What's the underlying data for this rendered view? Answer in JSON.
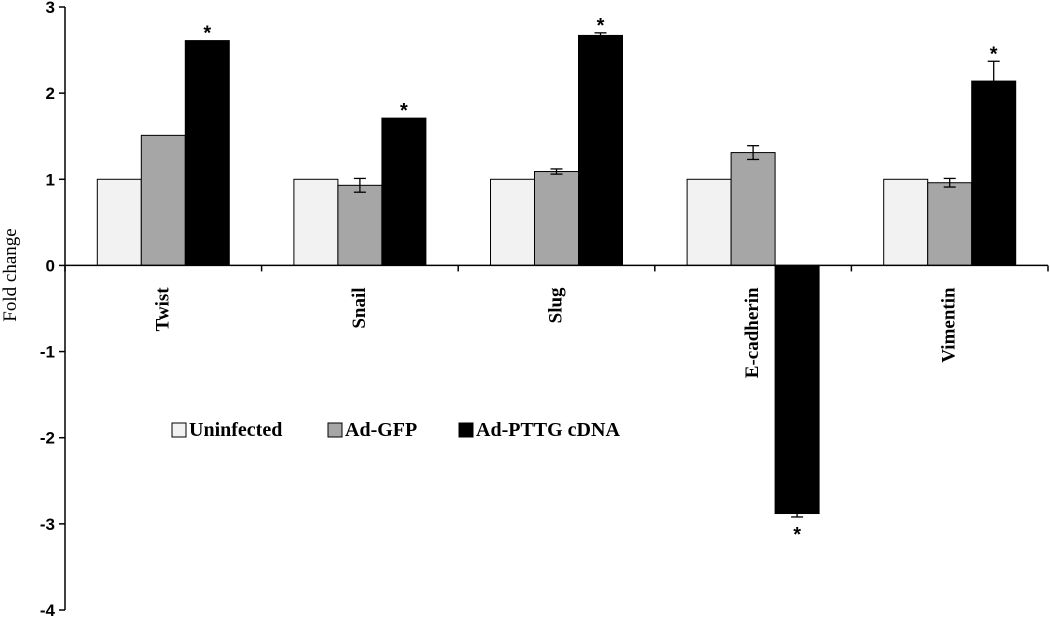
{
  "chart_data": {
    "type": "bar",
    "ylabel": "Fold change",
    "ylim": [
      -4,
      3
    ],
    "yticks": [
      3,
      2,
      1,
      0,
      -1,
      -2,
      -3,
      -4
    ],
    "categories": [
      "Twist",
      "Snail",
      "Slug",
      "E-cadherin",
      "Vimentin"
    ],
    "series": [
      {
        "name": "Uninfected",
        "color": "#f2f2f2",
        "values": [
          1.0,
          1.0,
          1.0,
          1.0,
          1.0
        ],
        "errors": [
          0.0,
          0.0,
          0.0,
          0.0,
          0.0
        ],
        "significant": [
          false,
          false,
          false,
          false,
          false
        ]
      },
      {
        "name": "Ad-GFP",
        "color": "#a6a6a6",
        "values": [
          1.51,
          0.93,
          1.09,
          1.31,
          0.96
        ],
        "errors": [
          0.0,
          0.08,
          0.03,
          0.08,
          0.05
        ],
        "significant": [
          false,
          false,
          false,
          false,
          false
        ]
      },
      {
        "name": "Ad-PTTG cDNA",
        "color": "#000000",
        "values": [
          2.61,
          1.71,
          2.67,
          -2.88,
          2.14
        ],
        "errors": [
          0.0,
          0.0,
          0.03,
          0.04,
          0.23
        ],
        "significant": [
          true,
          true,
          true,
          true,
          true
        ]
      }
    ],
    "significance_mark": "*",
    "legend_position": "inside-lower-left",
    "grid": false
  }
}
